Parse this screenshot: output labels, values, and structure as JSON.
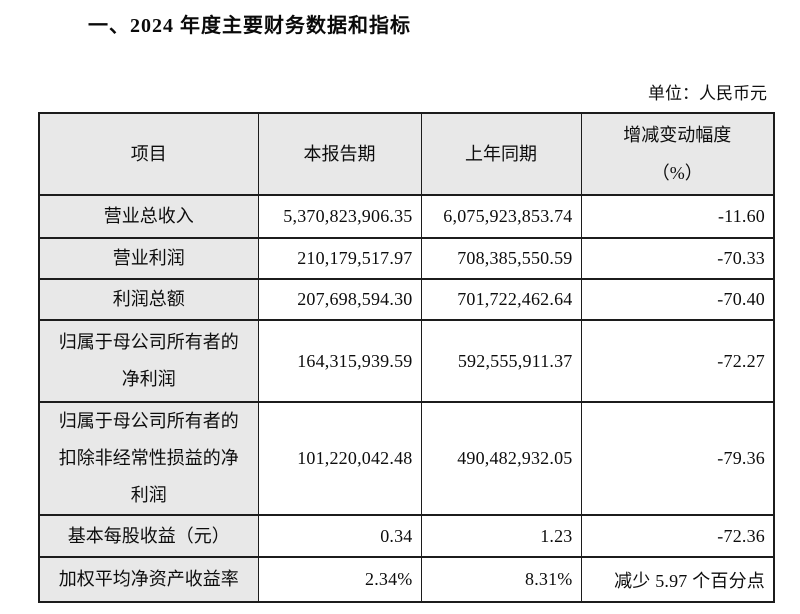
{
  "document": {
    "section_title": "一、2024 年度主要财务数据和指标",
    "unit_label": "单位：人民币元"
  },
  "table": {
    "headers": {
      "item": "项目",
      "current_period": "本报告期",
      "prior_year": "上年同期",
      "change": "增减变动幅度\n（%）"
    },
    "rows": [
      {
        "item": "营业总收入",
        "current_period": "5,370,823,906.35",
        "prior_year": "6,075,923,853.74",
        "change": "-11.60"
      },
      {
        "item": "营业利润",
        "current_period": "210,179,517.97",
        "prior_year": "708,385,550.59",
        "change": "-70.33"
      },
      {
        "item": "利润总额",
        "current_period": "207,698,594.30",
        "prior_year": "701,722,462.64",
        "change": "-70.40"
      },
      {
        "item": "归属于母公司所有者的\n净利润",
        "current_period": "164,315,939.59",
        "prior_year": "592,555,911.37",
        "change": "-72.27"
      },
      {
        "item": "归属于母公司所有者的\n扣除非经常性损益的净\n利润",
        "current_period": "101,220,042.48",
        "prior_year": "490,482,932.05",
        "change": "-79.36"
      },
      {
        "item": "基本每股收益（元）",
        "current_period": "0.34",
        "prior_year": "1.23",
        "change": "-72.36"
      },
      {
        "item": "加权平均净资产收益率",
        "current_period": "2.34%",
        "prior_year": "8.31%",
        "change": "减少 5.97 个百分点"
      }
    ],
    "colors": {
      "header_bg": "#e8e8e8",
      "border": "#1c1c1c",
      "text": "#0d0d0d"
    }
  }
}
